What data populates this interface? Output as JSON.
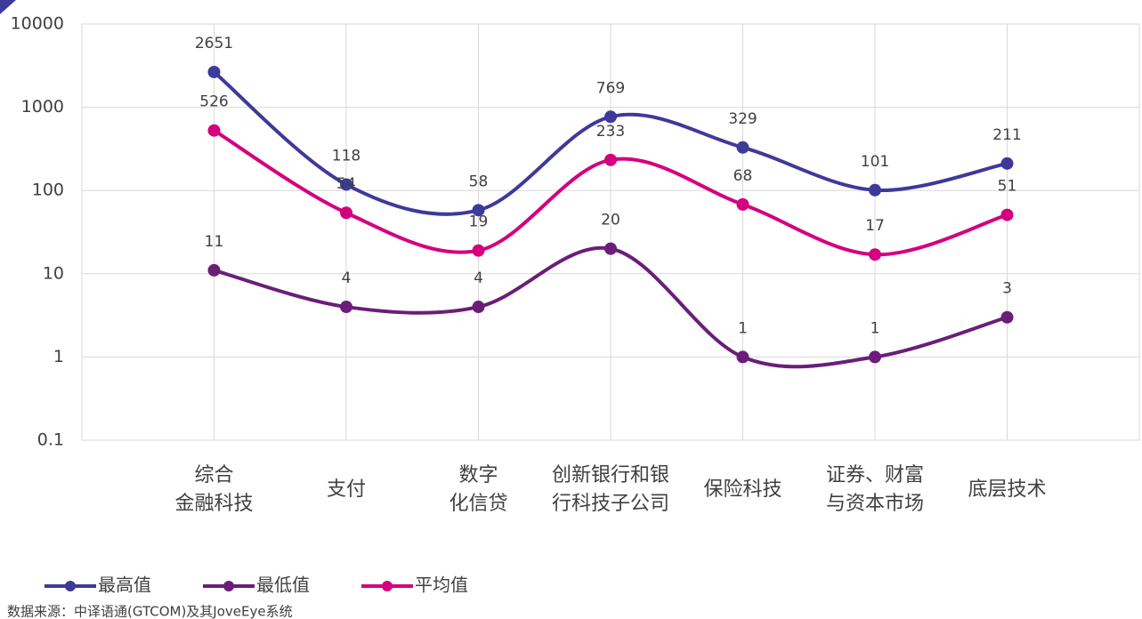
{
  "chart_data": {
    "type": "line",
    "categories": [
      [
        "综合",
        "金融科技"
      ],
      [
        "支付"
      ],
      [
        "数字",
        "化信贷"
      ],
      [
        "创新银行和银",
        "行科技子公司"
      ],
      [
        "保险科技"
      ],
      [
        "证券、财富",
        "与资本市场"
      ],
      [
        "底层技术"
      ]
    ],
    "series": [
      {
        "name": "最高值",
        "color": "#3d3a9a",
        "values": [
          2651,
          118,
          58,
          769,
          329,
          101,
          211
        ]
      },
      {
        "name": "最低值",
        "color": "#6a1e78",
        "values": [
          11,
          4,
          4,
          20,
          1,
          1,
          3
        ]
      },
      {
        "name": "平均值",
        "color": "#d4007f",
        "values": [
          526,
          54,
          19,
          233,
          68,
          17,
          51
        ]
      }
    ],
    "ylim": [
      0.1,
      10000
    ],
    "yticks": [
      0.1,
      1,
      10,
      100,
      1000,
      10000
    ],
    "log_scale": true,
    "grid": true,
    "source": "数据来源：中译语通(GTCOM)及其JoveEye系统"
  }
}
